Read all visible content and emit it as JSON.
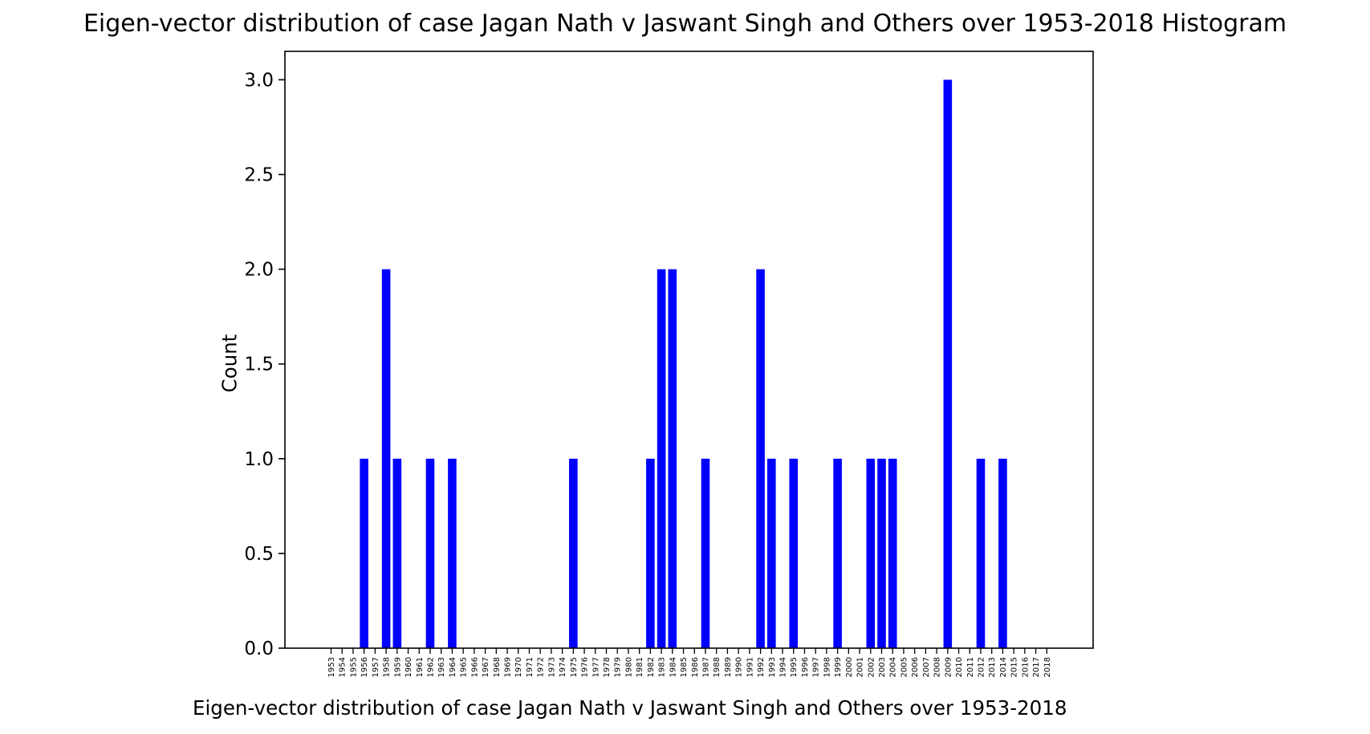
{
  "chart_data": {
    "type": "bar",
    "title": "Eigen-vector distribution of case Jagan Nath v Jaswant Singh and Others over 1953-2018 Histogram",
    "xlabel": "Eigen-vector distribution of case Jagan Nath v Jaswant Singh and Others over 1953-2018",
    "ylabel": "Count",
    "ylim": [
      0,
      3.15
    ],
    "yticks": [
      0.0,
      0.5,
      1.0,
      1.5,
      2.0,
      2.5,
      3.0
    ],
    "ytick_labels": [
      "0.0",
      "0.5",
      "1.0",
      "1.5",
      "2.0",
      "2.5",
      "3.0"
    ],
    "categories": [
      "1953",
      "1954",
      "1955",
      "1956",
      "1957",
      "1958",
      "1959",
      "1960",
      "1961",
      "1962",
      "1963",
      "1964",
      "1965",
      "1966",
      "1967",
      "1968",
      "1969",
      "1970",
      "1971",
      "1972",
      "1973",
      "1974",
      "1975",
      "1976",
      "1977",
      "1978",
      "1979",
      "1980",
      "1981",
      "1982",
      "1983",
      "1984",
      "1985",
      "1986",
      "1987",
      "1988",
      "1989",
      "1990",
      "1991",
      "1992",
      "1993",
      "1994",
      "1995",
      "1996",
      "1997",
      "1998",
      "1999",
      "2000",
      "2001",
      "2002",
      "2003",
      "2004",
      "2005",
      "2006",
      "2007",
      "2008",
      "2009",
      "2010",
      "2011",
      "2012",
      "2013",
      "2014",
      "2015",
      "2016",
      "2017",
      "2018"
    ],
    "values": [
      0,
      0,
      0,
      1,
      0,
      2,
      1,
      0,
      0,
      1,
      0,
      1,
      0,
      0,
      0,
      0,
      0,
      0,
      0,
      0,
      0,
      0,
      1,
      0,
      0,
      0,
      0,
      0,
      0,
      1,
      2,
      2,
      0,
      0,
      1,
      0,
      0,
      0,
      0,
      2,
      1,
      0,
      1,
      0,
      0,
      0,
      1,
      0,
      0,
      1,
      1,
      1,
      0,
      0,
      0,
      0,
      3,
      0,
      0,
      1,
      0,
      1,
      0,
      0,
      0,
      0
    ],
    "bar_color": "#0000ff",
    "grid": false,
    "legend": "none"
  }
}
